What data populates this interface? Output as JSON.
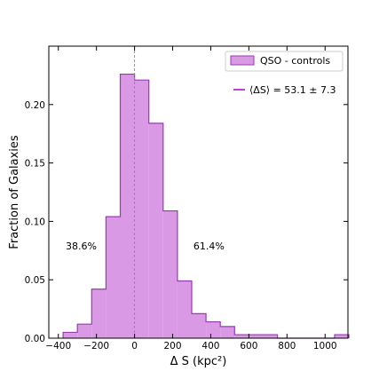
{
  "chart_data": {
    "type": "bar",
    "subtype": "step-histogram",
    "xlabel": "Δ S (kpc²)",
    "ylabel": "Fraction of Galaxies",
    "xlim": [
      -450,
      1120
    ],
    "ylim": [
      0,
      0.25
    ],
    "xticks": [
      -400,
      -200,
      0,
      200,
      400,
      600,
      800,
      1000
    ],
    "xtick_labels": [
      "−400",
      "−200",
      "0",
      "200",
      "400",
      "600",
      "800",
      "1000"
    ],
    "yticks": [
      0.0,
      0.05,
      0.1,
      0.15,
      0.2
    ],
    "ytick_labels": [
      "0.00",
      "0.05",
      "0.10",
      "0.15",
      "0.20"
    ],
    "bin_edges": [
      -375,
      -300,
      -225,
      -150,
      -75,
      0,
      75,
      150,
      225,
      300,
      375,
      450,
      525,
      600,
      675,
      750,
      825,
      900,
      975,
      1050,
      1125
    ],
    "values": [
      0.005,
      0.012,
      0.042,
      0.104,
      0.226,
      0.221,
      0.184,
      0.109,
      0.049,
      0.021,
      0.014,
      0.01,
      0.003,
      0.003,
      0.003,
      0.0,
      0.0,
      0.0,
      0.0,
      0.003
    ],
    "vline_x": 0,
    "series": [
      {
        "name": "QSO - controls",
        "fill": "#d999e5",
        "edge": "#9a3ab0"
      }
    ],
    "mean_line": {
      "label": "⟨ΔS⟩ = 53.1 ± 7.3",
      "color": "#c040d8"
    },
    "annotations": [
      {
        "text": "38.6%",
        "x": -280,
        "y": 0.076
      },
      {
        "text": "61.4%",
        "x": 390,
        "y": 0.076
      }
    ],
    "legend_position": "upper right",
    "grid": false
  }
}
